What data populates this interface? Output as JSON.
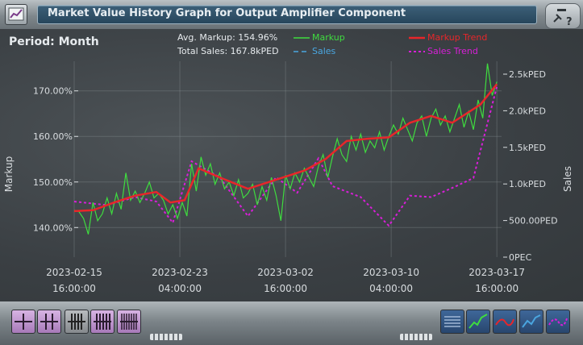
{
  "window": {
    "title": "Market Value History Graph for Output Amplifier Component",
    "help_label": "?"
  },
  "header": {
    "period_label": "Period: Month",
    "avg_markup": "Avg. Markup: 154.96%",
    "total_sales": "Total Sales: 167.8kPED"
  },
  "legend": [
    {
      "label": "Markup",
      "color": "#3fdc3f",
      "style": "solid"
    },
    {
      "label": "Markup Trend",
      "color": "#e8262a",
      "style": "solid"
    },
    {
      "label": "Sales",
      "color": "#4aa6e0",
      "style": "dashed"
    },
    {
      "label": "Sales Trend",
      "color": "#d81fd8",
      "style": "dotted"
    }
  ],
  "colors": {
    "markup": "#3fdc3f",
    "markup_trend": "#e8262a",
    "sales": "#4aa6e0",
    "sales_trend": "#d81fd8",
    "axis_text": "#d9dde0"
  },
  "toolbar": {
    "left_buttons": [
      {
        "icon": "one-divider-icon",
        "state": "on"
      },
      {
        "icon": "two-divider-icon",
        "state": "on"
      },
      {
        "icon": "four-divider-icon",
        "state": "off"
      },
      {
        "icon": "five-divider-icon",
        "state": "on"
      },
      {
        "icon": "eight-divider-icon",
        "state": "on"
      }
    ],
    "right_buttons": [
      {
        "icon": "list-icon"
      },
      {
        "icon": "markup-graph-icon"
      },
      {
        "icon": "markup-trend-graph-icon"
      },
      {
        "icon": "sales-graph-icon"
      },
      {
        "icon": "sales-trend-graph-icon"
      }
    ]
  },
  "chart_data": {
    "type": "line",
    "ylabel": "Markup",
    "y2label": "Sales",
    "ylim": [
      133.5,
      176.5
    ],
    "y2lim": [
      0,
      2500
    ],
    "xlim": [
      "2023-02-15 16:00",
      "2023-03-18 00:00"
    ],
    "yticks": [
      {
        "value": 140,
        "label": "140.00%"
      },
      {
        "value": 150,
        "label": "150.00%"
      },
      {
        "value": 160,
        "label": "160.00%"
      },
      {
        "value": 170,
        "label": "170.00%"
      }
    ],
    "y2ticks": [
      {
        "value": 0,
        "label": "0PEC"
      },
      {
        "value": 500,
        "label": "500.00PED"
      },
      {
        "value": 1000,
        "label": "1.0kPED"
      },
      {
        "value": 1500,
        "label": "1.5kPED"
      },
      {
        "value": 2000,
        "label": "2.0kPED"
      },
      {
        "value": 2500,
        "label": "2.5kPED"
      }
    ],
    "xticks": [
      {
        "value": "2023-02-15 16:00",
        "date": "2023-02-15",
        "time": "16:00:00"
      },
      {
        "value": "2023-02-23 04:00",
        "date": "2023-02-23",
        "time": "04:00:00"
      },
      {
        "value": "2023-03-02 16:00",
        "date": "2023-03-02",
        "time": "16:00:00"
      },
      {
        "value": "2023-03-10 04:00",
        "date": "2023-03-10",
        "time": "04:00:00"
      },
      {
        "value": "2023-03-17 16:00",
        "date": "2023-03-17",
        "time": "16:00:00"
      }
    ],
    "series": [
      {
        "name": "Markup",
        "axis": "left",
        "points": [
          [
            "2023-02-15 16:00",
            143.8
          ],
          [
            "2023-02-16 00:00",
            143.5
          ],
          [
            "2023-02-16 08:00",
            142.0
          ],
          [
            "2023-02-16 16:00",
            138.5
          ],
          [
            "2023-02-17 00:00",
            145.5
          ],
          [
            "2023-02-17 08:00",
            141.5
          ],
          [
            "2023-02-17 16:00",
            143.0
          ],
          [
            "2023-02-18 00:00",
            146.5
          ],
          [
            "2023-02-18 08:00",
            143.0
          ],
          [
            "2023-02-18 16:00",
            147.5
          ],
          [
            "2023-02-19 00:00",
            144.0
          ],
          [
            "2023-02-19 08:00",
            152.0
          ],
          [
            "2023-02-19 16:00",
            146.0
          ],
          [
            "2023-02-20 00:00",
            148.0
          ],
          [
            "2023-02-20 08:00",
            145.5
          ],
          [
            "2023-02-20 16:00",
            147.5
          ],
          [
            "2023-02-21 00:00",
            150.0
          ],
          [
            "2023-02-21 08:00",
            146.5
          ],
          [
            "2023-02-21 16:00",
            147.5
          ],
          [
            "2023-02-22 00:00",
            146.0
          ],
          [
            "2023-02-22 08:00",
            143.0
          ],
          [
            "2023-02-22 16:00",
            145.0
          ],
          [
            "2023-02-23 00:00",
            142.0
          ],
          [
            "2023-02-23 08:00",
            145.5
          ],
          [
            "2023-02-23 16:00",
            142.5
          ],
          [
            "2023-02-24 00:00",
            154.0
          ],
          [
            "2023-02-24 08:00",
            148.0
          ],
          [
            "2023-02-24 16:00",
            155.5
          ],
          [
            "2023-02-25 00:00",
            151.5
          ],
          [
            "2023-02-25 08:00",
            154.0
          ],
          [
            "2023-02-25 16:00",
            149.5
          ],
          [
            "2023-02-26 00:00",
            152.0
          ],
          [
            "2023-02-26 08:00",
            148.5
          ],
          [
            "2023-02-26 16:00",
            150.0
          ],
          [
            "2023-02-27 00:00",
            147.0
          ],
          [
            "2023-02-27 08:00",
            150.5
          ],
          [
            "2023-02-27 16:00",
            146.5
          ],
          [
            "2023-02-28 00:00",
            147.5
          ],
          [
            "2023-02-28 08:00",
            149.5
          ],
          [
            "2023-02-28 16:00",
            145.0
          ],
          [
            "2023-03-01 00:00",
            149.0
          ],
          [
            "2023-03-01 08:00",
            146.0
          ],
          [
            "2023-03-01 16:00",
            151.0
          ],
          [
            "2023-03-02 00:00",
            147.0
          ],
          [
            "2023-03-02 08:00",
            141.5
          ],
          [
            "2023-03-02 16:00",
            151.5
          ],
          [
            "2023-03-03 00:00",
            148.5
          ],
          [
            "2023-03-03 08:00",
            152.0
          ],
          [
            "2023-03-03 16:00",
            150.0
          ],
          [
            "2023-03-04 00:00",
            153.0
          ],
          [
            "2023-03-04 08:00",
            151.0
          ],
          [
            "2023-03-04 16:00",
            149.0
          ],
          [
            "2023-03-05 00:00",
            153.5
          ],
          [
            "2023-03-05 08:00",
            156.0
          ],
          [
            "2023-03-05 16:00",
            151.0
          ],
          [
            "2023-03-06 00:00",
            155.5
          ],
          [
            "2023-03-06 08:00",
            159.5
          ],
          [
            "2023-03-06 16:00",
            156.0
          ],
          [
            "2023-03-07 00:00",
            154.5
          ],
          [
            "2023-03-07 08:00",
            160.0
          ],
          [
            "2023-03-07 16:00",
            157.0
          ],
          [
            "2023-03-08 00:00",
            160.5
          ],
          [
            "2023-03-08 08:00",
            156.5
          ],
          [
            "2023-03-08 16:00",
            159.0
          ],
          [
            "2023-03-09 00:00",
            157.5
          ],
          [
            "2023-03-09 08:00",
            161.0
          ],
          [
            "2023-03-09 16:00",
            157.0
          ],
          [
            "2023-03-10 00:00",
            160.0
          ],
          [
            "2023-03-10 08:00",
            162.5
          ],
          [
            "2023-03-10 16:00",
            160.5
          ],
          [
            "2023-03-11 00:00",
            164.0
          ],
          [
            "2023-03-11 08:00",
            161.5
          ],
          [
            "2023-03-11 16:00",
            159.0
          ],
          [
            "2023-03-12 00:00",
            163.0
          ],
          [
            "2023-03-12 08:00",
            164.5
          ],
          [
            "2023-03-12 16:00",
            160.0
          ],
          [
            "2023-03-13 00:00",
            164.0
          ],
          [
            "2023-03-13 08:00",
            166.0
          ],
          [
            "2023-03-13 16:00",
            162.5
          ],
          [
            "2023-03-14 00:00",
            164.5
          ],
          [
            "2023-03-14 08:00",
            161.0
          ],
          [
            "2023-03-14 16:00",
            164.0
          ],
          [
            "2023-03-15 00:00",
            167.0
          ],
          [
            "2023-03-15 08:00",
            162.0
          ],
          [
            "2023-03-15 16:00",
            165.5
          ],
          [
            "2023-03-16 00:00",
            161.5
          ],
          [
            "2023-03-16 08:00",
            168.0
          ],
          [
            "2023-03-16 16:00",
            164.0
          ],
          [
            "2023-03-17 00:00",
            176.0
          ],
          [
            "2023-03-17 08:00",
            169.0
          ],
          [
            "2023-03-17 16:00",
            172.0
          ]
        ]
      },
      {
        "name": "Markup Trend",
        "axis": "left",
        "points": [
          [
            "2023-02-15 16:00",
            143.6
          ],
          [
            "2023-02-17 00:00",
            143.8
          ],
          [
            "2023-02-18 12:00",
            145.5
          ],
          [
            "2023-02-20 00:00",
            147.0
          ],
          [
            "2023-02-21 12:00",
            147.8
          ],
          [
            "2023-02-22 12:00",
            145.5
          ],
          [
            "2023-02-23 12:00",
            146.0
          ],
          [
            "2023-02-24 12:00",
            153.0
          ],
          [
            "2023-02-26 00:00",
            151.0
          ],
          [
            "2023-02-28 00:00",
            148.5
          ],
          [
            "2023-03-02 00:00",
            150.5
          ],
          [
            "2023-03-04 00:00",
            152.5
          ],
          [
            "2023-03-05 12:00",
            155.0
          ],
          [
            "2023-03-07 00:00",
            159.0
          ],
          [
            "2023-03-08 12:00",
            159.5
          ],
          [
            "2023-03-10 00:00",
            159.8
          ],
          [
            "2023-03-11 12:00",
            163.0
          ],
          [
            "2023-03-13 00:00",
            164.5
          ],
          [
            "2023-03-14 12:00",
            163.0
          ],
          [
            "2023-03-15 12:00",
            165.0
          ],
          [
            "2023-03-16 12:00",
            167.0
          ],
          [
            "2023-03-17 16:00",
            171.5
          ]
        ]
      },
      {
        "name": "Sales Trend",
        "axis": "right",
        "points": [
          [
            "2023-02-15 16:00",
            760
          ],
          [
            "2023-02-18 00:00",
            710
          ],
          [
            "2023-02-20 00:00",
            820
          ],
          [
            "2023-02-21 12:00",
            760
          ],
          [
            "2023-02-22 16:00",
            470
          ],
          [
            "2023-02-24 00:00",
            1310
          ],
          [
            "2023-02-26 00:00",
            1090
          ],
          [
            "2023-02-28 00:00",
            560
          ],
          [
            "2023-03-02 00:00",
            1090
          ],
          [
            "2023-03-03 12:00",
            880
          ],
          [
            "2023-03-05 00:00",
            1350
          ],
          [
            "2023-03-06 00:00",
            970
          ],
          [
            "2023-03-08 00:00",
            820
          ],
          [
            "2023-03-10 00:00",
            430
          ],
          [
            "2023-03-11 12:00",
            840
          ],
          [
            "2023-03-13 00:00",
            820
          ],
          [
            "2023-03-14 16:00",
            960
          ],
          [
            "2023-03-16 00:00",
            1080
          ],
          [
            "2023-03-17 16:00",
            2330
          ]
        ]
      }
    ]
  }
}
